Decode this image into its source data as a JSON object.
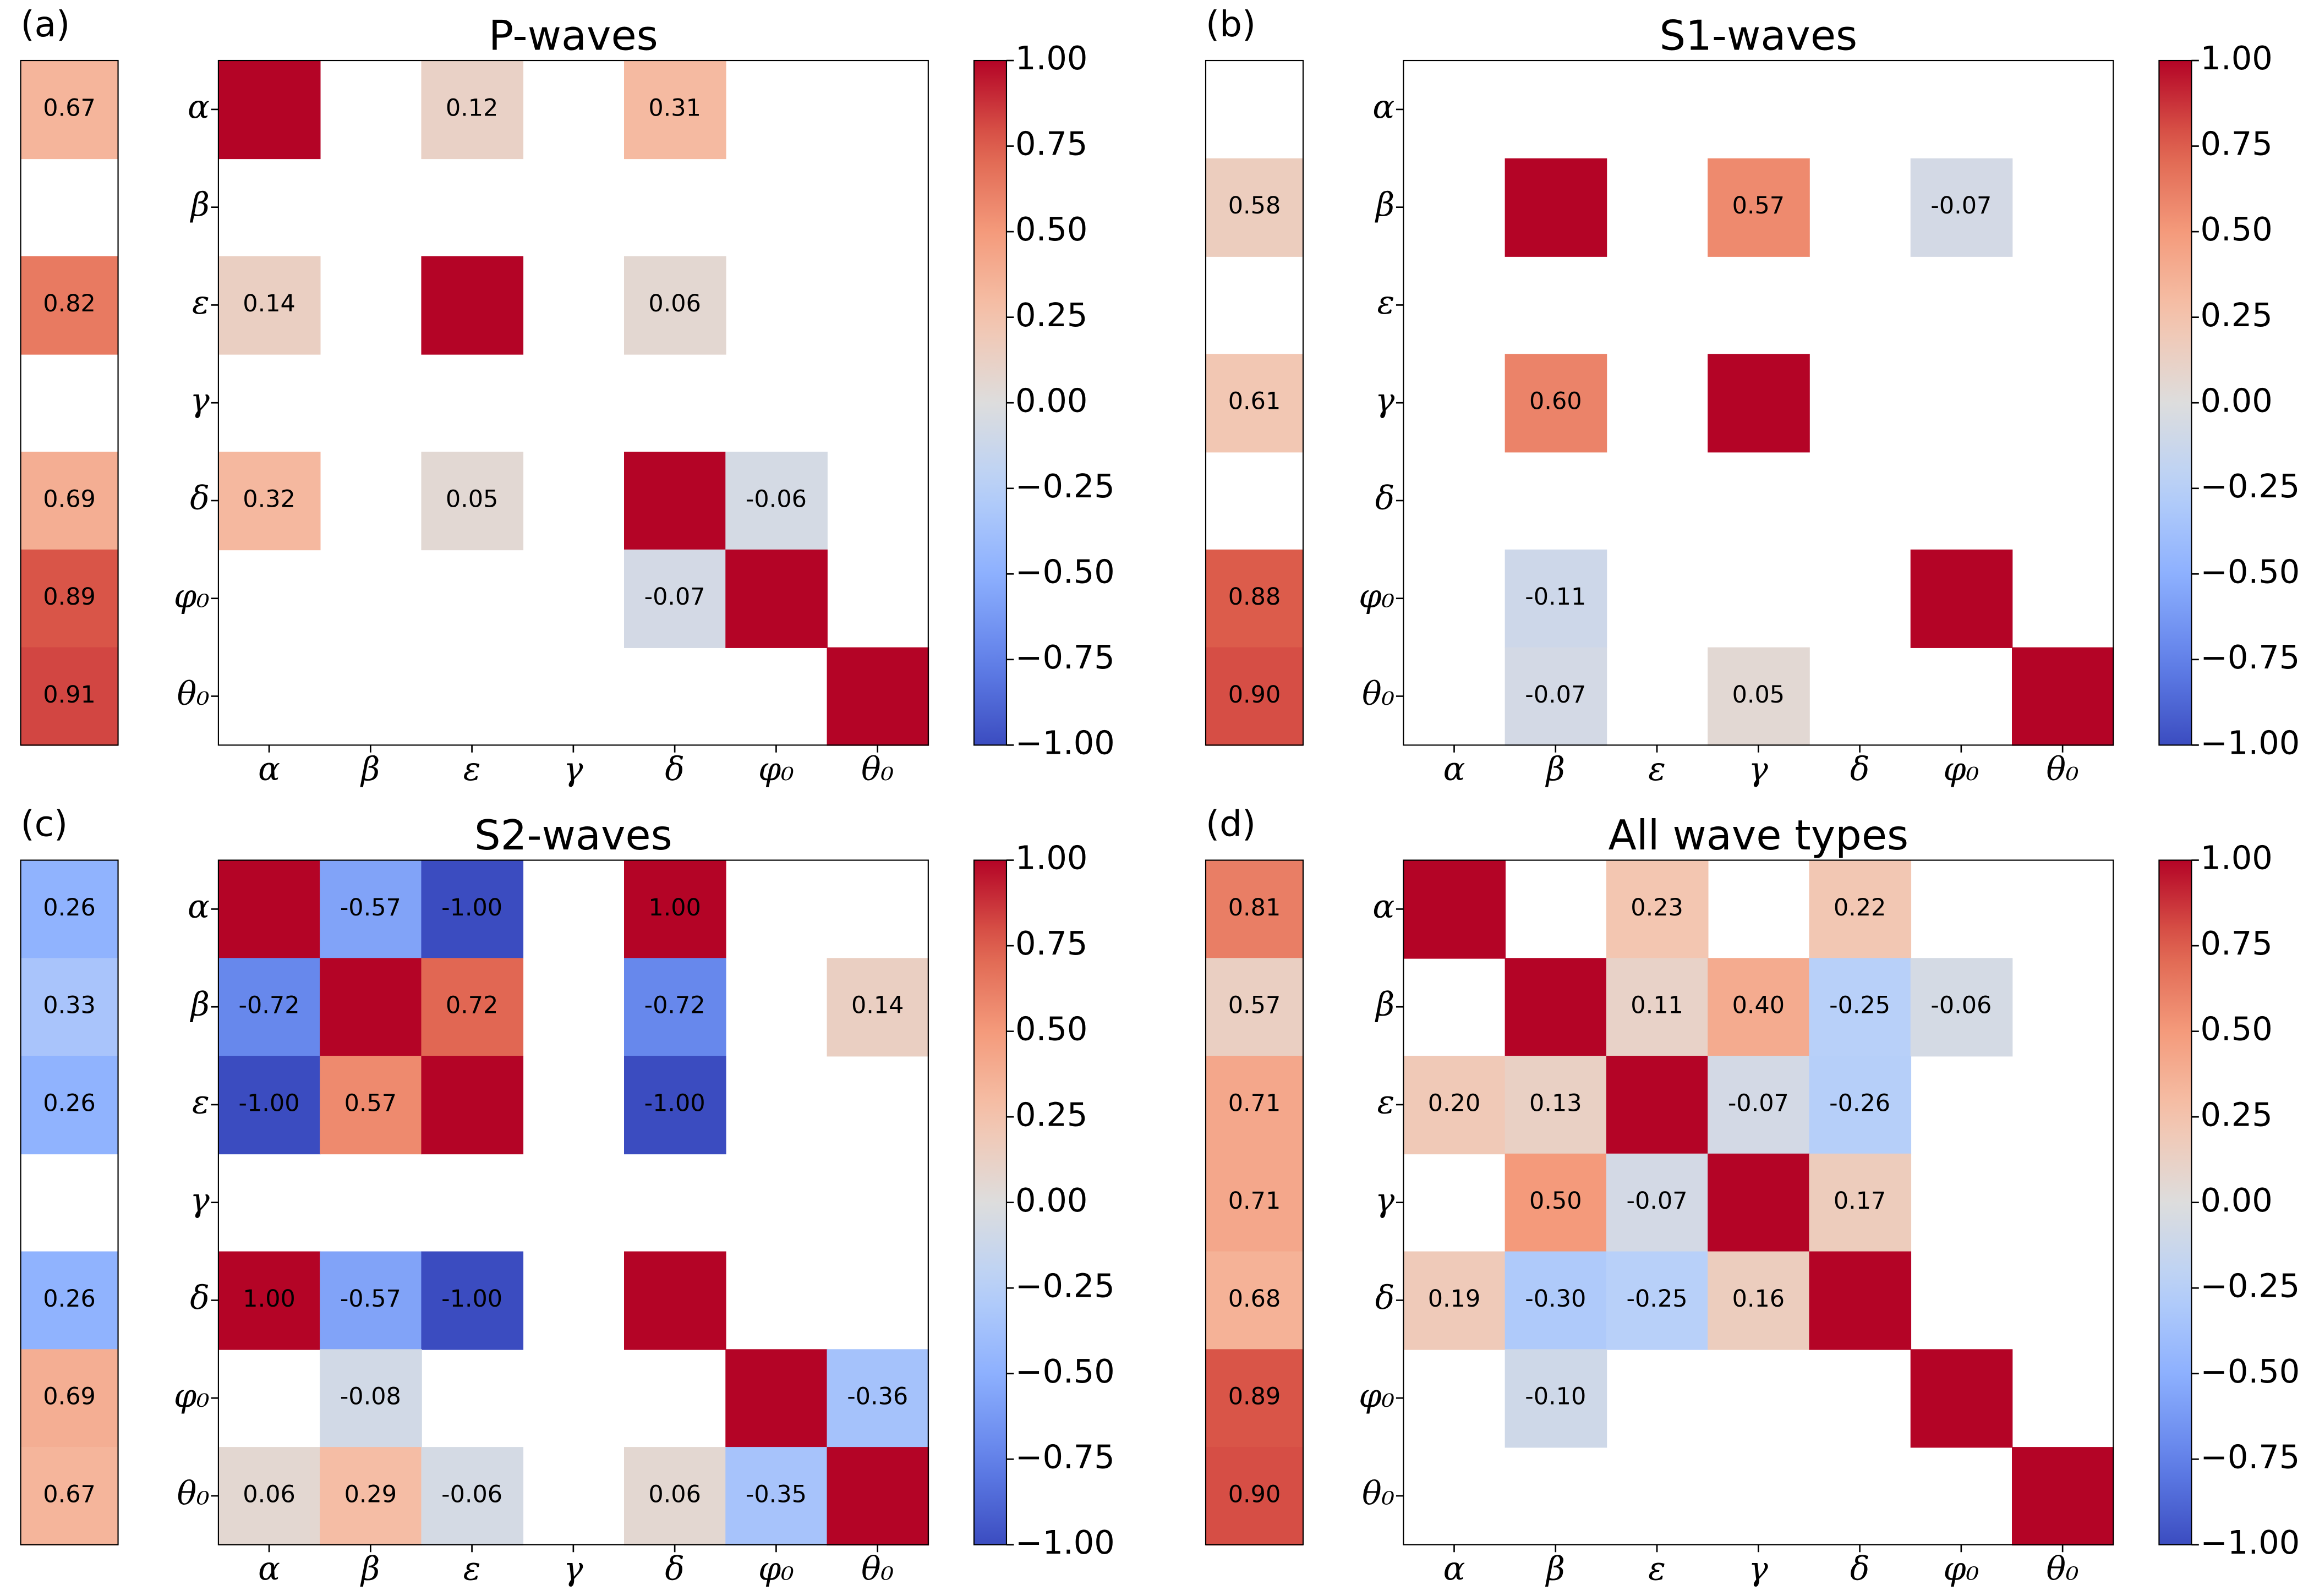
{
  "chart_data": [
    {
      "type": "heatmap",
      "panel_label": "(a)",
      "title": "P-waves",
      "colormap": "coolwarm",
      "rows": [
        "α",
        "β",
        "ε",
        "γ",
        "δ",
        "φ₀",
        "θ₀"
      ],
      "columns": [
        "α",
        "β",
        "ε",
        "γ",
        "δ",
        "φ₀",
        "θ₀"
      ],
      "matrix": [
        [
          1,
          null,
          0.12,
          null,
          0.31,
          null,
          null
        ],
        [
          null,
          null,
          null,
          null,
          null,
          null,
          null
        ],
        [
          0.14,
          null,
          1,
          null,
          0.06,
          null,
          null
        ],
        [
          null,
          null,
          null,
          null,
          null,
          null,
          null
        ],
        [
          0.32,
          null,
          0.05,
          null,
          1,
          -0.06,
          null
        ],
        [
          null,
          null,
          null,
          null,
          -0.07,
          1,
          null
        ],
        [
          null,
          null,
          null,
          null,
          null,
          null,
          1
        ]
      ],
      "matrix_labels": [
        [
          null,
          null,
          "0.12",
          null,
          "0.31",
          null,
          null
        ],
        [
          null,
          null,
          null,
          null,
          null,
          null,
          null
        ],
        [
          "0.14",
          null,
          null,
          null,
          "0.06",
          null,
          null
        ],
        [
          null,
          null,
          null,
          null,
          null,
          null,
          null
        ],
        [
          "0.32",
          null,
          "0.05",
          null,
          null,
          "-0.06",
          null
        ],
        [
          null,
          null,
          null,
          null,
          "-0.07",
          null,
          null
        ],
        [
          null,
          null,
          null,
          null,
          null,
          null,
          null
        ]
      ],
      "side_values": [
        0.67,
        null,
        0.82,
        null,
        0.69,
        0.89,
        0.91
      ],
      "side_value_labels": [
        "0.67",
        null,
        "0.82",
        null,
        "0.69",
        "0.89",
        "0.91"
      ],
      "side_clim": [
        0,
        1
      ],
      "clim": [
        -1,
        1
      ],
      "cticks": [
        {
          "value": 1,
          "label": "1.00"
        },
        {
          "value": 0.75,
          "label": "0.75"
        },
        {
          "value": 0.5,
          "label": "0.50"
        },
        {
          "value": 0.25,
          "label": "0.25"
        },
        {
          "value": 0,
          "label": "0.00"
        },
        {
          "value": -0.25,
          "label": "−0.25"
        },
        {
          "value": -0.5,
          "label": "−0.50"
        },
        {
          "value": -0.75,
          "label": "−0.75"
        },
        {
          "value": -1,
          "label": "−1.00"
        }
      ]
    },
    {
      "type": "heatmap",
      "panel_label": "(b)",
      "title": "S1-waves",
      "colormap": "coolwarm",
      "rows": [
        "α",
        "β",
        "ε",
        "γ",
        "δ",
        "φ₀",
        "θ₀"
      ],
      "columns": [
        "α",
        "β",
        "ε",
        "γ",
        "δ",
        "φ₀",
        "θ₀"
      ],
      "matrix": [
        [
          null,
          null,
          null,
          null,
          null,
          null,
          null
        ],
        [
          null,
          1,
          null,
          0.57,
          null,
          -0.07,
          null
        ],
        [
          null,
          null,
          null,
          null,
          null,
          null,
          null
        ],
        [
          null,
          0.6,
          null,
          1,
          null,
          null,
          null
        ],
        [
          null,
          null,
          null,
          null,
          null,
          null,
          null
        ],
        [
          null,
          -0.11,
          null,
          null,
          null,
          1,
          null
        ],
        [
          null,
          -0.07,
          null,
          0.05,
          null,
          null,
          1
        ]
      ],
      "matrix_labels": [
        [
          null,
          null,
          null,
          null,
          null,
          null,
          null
        ],
        [
          null,
          null,
          null,
          "0.57",
          null,
          "-0.07",
          null
        ],
        [
          null,
          null,
          null,
          null,
          null,
          null,
          null
        ],
        [
          null,
          "0.60",
          null,
          null,
          null,
          null,
          null
        ],
        [
          null,
          null,
          null,
          null,
          null,
          null,
          null
        ],
        [
          null,
          "-0.11",
          null,
          null,
          null,
          null,
          null
        ],
        [
          null,
          "-0.07",
          null,
          "0.05",
          null,
          null,
          null
        ]
      ],
      "side_values": [
        null,
        0.58,
        null,
        0.61,
        null,
        0.88,
        0.9
      ],
      "side_value_labels": [
        null,
        "0.58",
        null,
        "0.61",
        null,
        "0.88",
        "0.90"
      ],
      "side_clim": [
        0,
        1
      ],
      "clim": [
        -1,
        1
      ],
      "cticks": [
        {
          "value": 1,
          "label": "1.00"
        },
        {
          "value": 0.75,
          "label": "0.75"
        },
        {
          "value": 0.5,
          "label": "0.50"
        },
        {
          "value": 0.25,
          "label": "0.25"
        },
        {
          "value": 0,
          "label": "0.00"
        },
        {
          "value": -0.25,
          "label": "−0.25"
        },
        {
          "value": -0.5,
          "label": "−0.50"
        },
        {
          "value": -0.75,
          "label": "−0.75"
        },
        {
          "value": -1,
          "label": "−1.00"
        }
      ]
    },
    {
      "type": "heatmap",
      "panel_label": "(c)",
      "title": "S2-waves",
      "colormap": "coolwarm",
      "rows": [
        "α",
        "β",
        "ε",
        "γ",
        "δ",
        "φ₀",
        "θ₀"
      ],
      "columns": [
        "α",
        "β",
        "ε",
        "γ",
        "δ",
        "φ₀",
        "θ₀"
      ],
      "matrix": [
        [
          1,
          -0.57,
          -1,
          null,
          1,
          null,
          null
        ],
        [
          -0.72,
          1,
          0.72,
          null,
          -0.72,
          null,
          0.14
        ],
        [
          -1,
          0.57,
          1,
          null,
          -1,
          null,
          null
        ],
        [
          null,
          null,
          null,
          null,
          null,
          null,
          null
        ],
        [
          1,
          -0.57,
          -1,
          null,
          1,
          null,
          null
        ],
        [
          null,
          -0.08,
          null,
          null,
          null,
          1,
          -0.36
        ],
        [
          0.06,
          0.29,
          -0.06,
          null,
          0.06,
          -0.35,
          1
        ]
      ],
      "matrix_labels": [
        [
          null,
          "-0.57",
          "-1.00",
          null,
          "1.00",
          null,
          null
        ],
        [
          "-0.72",
          null,
          "0.72",
          null,
          "-0.72",
          null,
          "0.14"
        ],
        [
          "-1.00",
          "0.57",
          null,
          null,
          "-1.00",
          null,
          null
        ],
        [
          null,
          null,
          null,
          null,
          null,
          null,
          null
        ],
        [
          "1.00",
          "-0.57",
          "-1.00",
          null,
          null,
          null,
          null
        ],
        [
          null,
          "-0.08",
          null,
          null,
          null,
          null,
          "-0.36"
        ],
        [
          "0.06",
          "0.29",
          "-0.06",
          null,
          "0.06",
          "-0.35",
          null
        ]
      ],
      "side_values": [
        0.26,
        0.33,
        0.26,
        null,
        0.26,
        0.69,
        0.67
      ],
      "side_value_labels": [
        "0.26",
        "0.33",
        "0.26",
        null,
        "0.26",
        "0.69",
        "0.67"
      ],
      "side_clim": [
        0,
        1
      ],
      "clim": [
        -1,
        1
      ],
      "cticks": [
        {
          "value": 1,
          "label": "1.00"
        },
        {
          "value": 0.75,
          "label": "0.75"
        },
        {
          "value": 0.5,
          "label": "0.50"
        },
        {
          "value": 0.25,
          "label": "0.25"
        },
        {
          "value": 0,
          "label": "0.00"
        },
        {
          "value": -0.25,
          "label": "−0.25"
        },
        {
          "value": -0.5,
          "label": "−0.50"
        },
        {
          "value": -0.75,
          "label": "−0.75"
        },
        {
          "value": -1,
          "label": "−1.00"
        }
      ]
    },
    {
      "type": "heatmap",
      "panel_label": "(d)",
      "title": "All wave types",
      "colormap": "coolwarm",
      "rows": [
        "α",
        "β",
        "ε",
        "γ",
        "δ",
        "φ₀",
        "θ₀"
      ],
      "columns": [
        "α",
        "β",
        "ε",
        "γ",
        "δ",
        "φ₀",
        "θ₀"
      ],
      "matrix": [
        [
          1,
          null,
          0.23,
          null,
          0.22,
          null,
          null
        ],
        [
          null,
          1,
          0.11,
          0.4,
          -0.25,
          -0.06,
          null
        ],
        [
          0.2,
          0.13,
          1,
          -0.07,
          -0.26,
          null,
          null
        ],
        [
          null,
          0.5,
          -0.07,
          1,
          0.17,
          null,
          null
        ],
        [
          0.19,
          -0.3,
          -0.25,
          0.16,
          1,
          null,
          null
        ],
        [
          null,
          -0.1,
          null,
          null,
          null,
          1,
          null
        ],
        [
          null,
          null,
          null,
          null,
          null,
          null,
          1
        ]
      ],
      "matrix_labels": [
        [
          null,
          null,
          "0.23",
          null,
          "0.22",
          null,
          null
        ],
        [
          null,
          null,
          "0.11",
          "0.40",
          "-0.25",
          "-0.06",
          null
        ],
        [
          "0.20",
          "0.13",
          null,
          "-0.07",
          "-0.26",
          null,
          null
        ],
        [
          null,
          "0.50",
          "-0.07",
          null,
          "0.17",
          null,
          null
        ],
        [
          "0.19",
          "-0.30",
          "-0.25",
          "0.16",
          null,
          null,
          null
        ],
        [
          null,
          "-0.10",
          null,
          null,
          null,
          null,
          null
        ],
        [
          null,
          null,
          null,
          null,
          null,
          null,
          null
        ]
      ],
      "side_values": [
        0.81,
        0.57,
        0.71,
        0.71,
        0.68,
        0.89,
        0.9
      ],
      "side_value_labels": [
        "0.81",
        "0.57",
        "0.71",
        "0.71",
        "0.68",
        "0.89",
        "0.90"
      ],
      "side_clim": [
        0,
        1
      ],
      "clim": [
        -1,
        1
      ],
      "cticks": [
        {
          "value": 1,
          "label": "1.00"
        },
        {
          "value": 0.75,
          "label": "0.75"
        },
        {
          "value": 0.5,
          "label": "0.50"
        },
        {
          "value": 0.25,
          "label": "0.25"
        },
        {
          "value": 0,
          "label": "0.00"
        },
        {
          "value": -0.25,
          "label": "−0.25"
        },
        {
          "value": -0.5,
          "label": "−0.50"
        },
        {
          "value": -0.75,
          "label": "−0.75"
        },
        {
          "value": -1,
          "label": "−1.00"
        }
      ]
    }
  ]
}
